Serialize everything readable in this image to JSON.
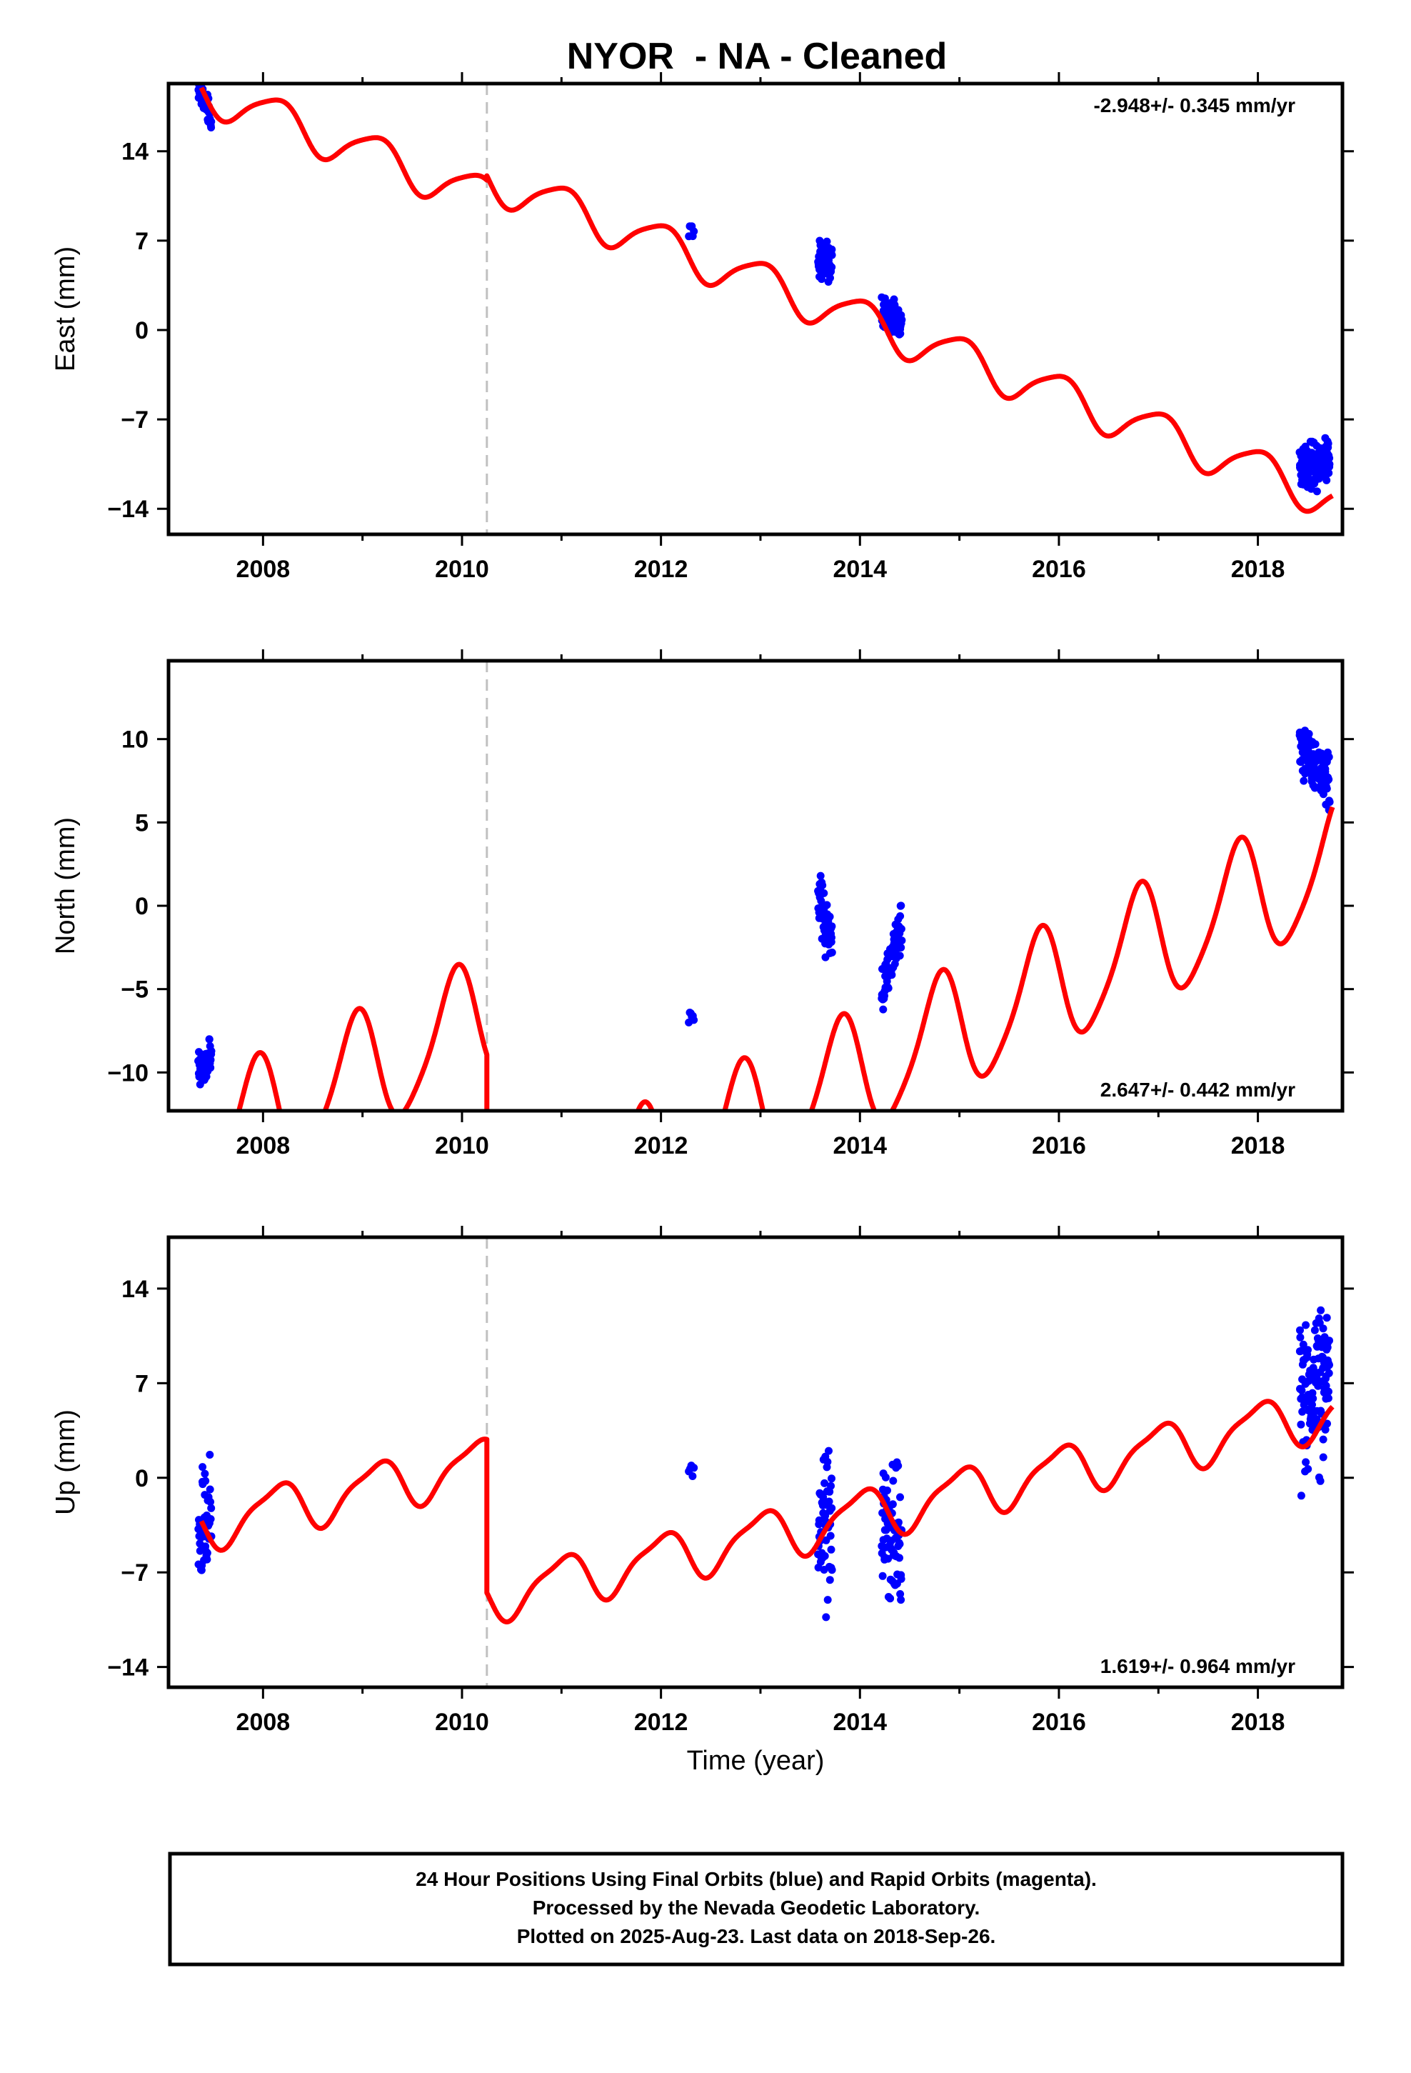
{
  "page_title": "NYOR  - NA - Cleaned",
  "footer": {
    "lines": [
      "24 Hour Positions Using Final Orbits (blue) and Rapid Orbits (magenta).",
      "Processed by the Nevada Geodetic Laboratory.",
      "Plotted on 2025-Aug-23. Last data on 2018-Sep-26."
    ]
  },
  "colors": {
    "data": "#0000ff",
    "model": "#ff0000",
    "break_line": "#c0c0c0",
    "frame": "#000000"
  },
  "chart_data": [
    {
      "type": "scatter",
      "component": "east",
      "ylabel": "East (mm)",
      "xlabel": "",
      "rate_text": "-2.948+/- 0.345 mm/yr",
      "rate_position": "top-right",
      "xlim": [
        2007.05,
        2018.85
      ],
      "ylim": [
        -16,
        19.3
      ],
      "xticks": [
        2008,
        2010,
        2012,
        2014,
        2016,
        2018
      ],
      "yticks": [
        -14,
        -7,
        0,
        7,
        14
      ],
      "ytick_labels": [
        "−14",
        "−7",
        "0",
        "7",
        "14"
      ],
      "breaks": [
        2010.25
      ],
      "model": {
        "rate": -2.948,
        "annual_amp": 1.6,
        "annual_phase": 0.5,
        "semiannual_amp": 0.3,
        "semiannual_phase": 0.3,
        "segments": [
          {
            "from": 2007.38,
            "to": 2010.25,
            "offset": 18.8,
            "t0": 2007.38
          },
          {
            "from": 2010.25,
            "to": 2018.75,
            "offset": 11.9,
            "t0": 2010.25
          }
        ]
      },
      "clusters": [
        {
          "from": 2007.35,
          "to": 2007.48,
          "count": 60,
          "center": [
            19.0,
            16.6
          ],
          "spread": 0.7
        },
        {
          "from": 2012.28,
          "to": 2012.33,
          "count": 6,
          "center": [
            7.5,
            7.5
          ],
          "spread": 1.2
        },
        {
          "from": 2013.58,
          "to": 2013.72,
          "count": 60,
          "center": [
            5.7,
            5.2
          ],
          "spread": 1.1
        },
        {
          "from": 2014.22,
          "to": 2014.42,
          "count": 70,
          "center": [
            1.3,
            0.6
          ],
          "spread": 0.9
        },
        {
          "from": 2018.42,
          "to": 2018.72,
          "count": 120,
          "center": [
            -10.8,
            -9.8
          ],
          "spread": 1.3
        }
      ]
    },
    {
      "type": "scatter",
      "component": "north",
      "ylabel": "North (mm)",
      "xlabel": "",
      "rate_text": "2.647+/- 0.442 mm/yr",
      "rate_position": "bottom-right",
      "xlim": [
        2007.05,
        2018.85
      ],
      "ylim": [
        -12.3,
        14.7
      ],
      "xticks": [
        2008,
        2010,
        2012,
        2014,
        2016,
        2018
      ],
      "yticks": [
        -10,
        -5,
        0,
        5,
        10
      ],
      "ytick_labels": [
        "−10",
        "−5",
        "0",
        "5",
        "10"
      ],
      "breaks": [
        2010.25
      ],
      "model": {
        "rate": 2.647,
        "annual_amp": 3.6,
        "annual_phase": 0.3,
        "semiannual_amp": 0.6,
        "semiannual_phase": 0.0,
        "segments": [
          {
            "from": 2007.38,
            "to": 2010.25,
            "offset": -14.4,
            "t0": 2007.38
          },
          {
            "from": 2010.25,
            "to": 2018.75,
            "offset": -20.0,
            "t0": 2010.25
          }
        ]
      },
      "clusters": [
        {
          "from": 2007.35,
          "to": 2007.48,
          "count": 45,
          "center": [
            -10.0,
            -9.0
          ],
          "spread": 0.9
        },
        {
          "from": 2012.28,
          "to": 2012.33,
          "count": 6,
          "center": [
            -6.8,
            -6.8
          ],
          "spread": 0.5
        },
        {
          "from": 2013.58,
          "to": 2013.72,
          "count": 60,
          "center": [
            0.6,
            -2.6
          ],
          "spread": 1.3
        },
        {
          "from": 2014.22,
          "to": 2014.42,
          "count": 70,
          "center": [
            -5.4,
            -1.0
          ],
          "spread": 1.0
        },
        {
          "from": 2018.42,
          "to": 2018.72,
          "count": 120,
          "center": [
            9.5,
            7.5
          ],
          "spread": 1.2
        }
      ]
    },
    {
      "type": "scatter",
      "component": "up",
      "ylabel": "Up (mm)",
      "xlabel": "Time (year)",
      "rate_text": "1.619+/- 0.964 mm/yr",
      "rate_position": "bottom-right",
      "xlim": [
        2007.05,
        2018.85
      ],
      "ylim": [
        -15.5,
        17.8
      ],
      "xticks": [
        2008,
        2010,
        2012,
        2014,
        2016,
        2018
      ],
      "yticks": [
        -14,
        -7,
        0,
        7,
        14
      ],
      "ytick_labels": [
        "−14",
        "−7",
        "0",
        "7",
        "14"
      ],
      "breaks": [
        2010.25
      ],
      "model": {
        "rate": 1.619,
        "annual_amp": 1.8,
        "annual_phase": 0.5,
        "semiannual_amp": 0.5,
        "semiannual_phase": 0.3,
        "segments": [
          {
            "from": 2007.38,
            "to": 2010.25,
            "offset": -3.5,
            "t0": 2007.38
          },
          {
            "from": 2010.25,
            "to": 2018.75,
            "offset": -8.8,
            "t0": 2010.25
          }
        ]
      },
      "clusters": [
        {
          "from": 2007.35,
          "to": 2007.48,
          "count": 50,
          "center": [
            -5.0,
            -2.0
          ],
          "spread": 3.0
        },
        {
          "from": 2012.28,
          "to": 2012.33,
          "count": 5,
          "center": [
            0.8,
            0.8
          ],
          "spread": 1.2
        },
        {
          "from": 2013.58,
          "to": 2013.72,
          "count": 55,
          "center": [
            -4.0,
            -4.0
          ],
          "spread": 3.8
        },
        {
          "from": 2014.22,
          "to": 2014.42,
          "count": 70,
          "center": [
            -4.0,
            -4.0
          ],
          "spread": 3.5
        },
        {
          "from": 2018.42,
          "to": 2018.72,
          "count": 120,
          "center": [
            5.5,
            8.0
          ],
          "spread": 4.2
        }
      ]
    }
  ]
}
